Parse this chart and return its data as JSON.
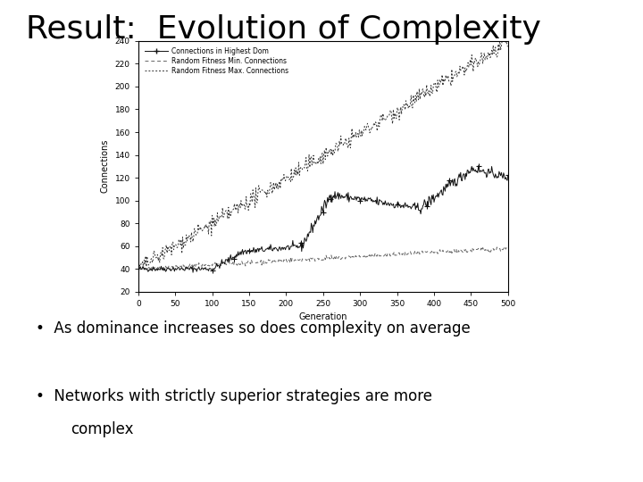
{
  "title": "Result:  Evolution of Complexity",
  "title_fontsize": 26,
  "xlabel": "Generation",
  "ylabel": "Connections",
  "xlim": [
    0,
    500
  ],
  "ylim": [
    20,
    240
  ],
  "xticks": [
    0,
    50,
    100,
    150,
    200,
    250,
    300,
    350,
    400,
    450,
    500
  ],
  "yticks": [
    20,
    40,
    60,
    80,
    100,
    120,
    140,
    160,
    180,
    200,
    220,
    240
  ],
  "legend_labels": [
    "Connections in Highest Dom",
    "Random Fitness Min. Connections",
    "Random Fitness Max. Connections"
  ],
  "bullet1": "As dominance increases so does complexity on average",
  "bullet2": "Networks with strictly superior strategies are more",
  "bullet2b": "    complex",
  "background_color": "#ffffff",
  "plot_bg_color": "#ffffff"
}
